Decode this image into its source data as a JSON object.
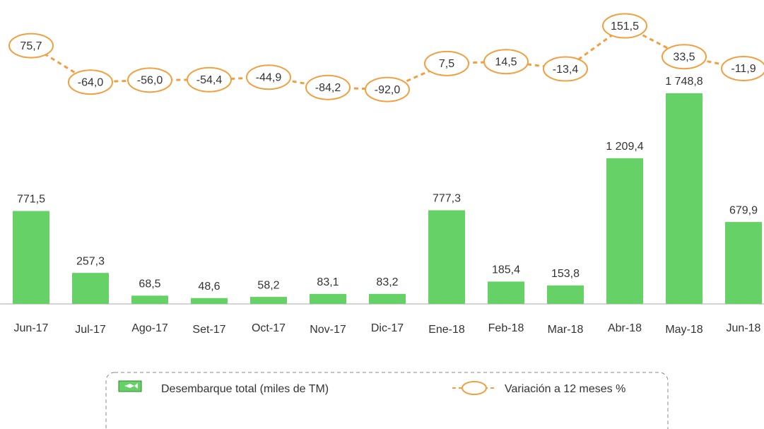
{
  "chart_data": {
    "type": "bar",
    "categories": [
      "Jun-17",
      "Jul-17",
      "Ago-17",
      "Set-17",
      "Oct-17",
      "Nov-17",
      "Dic-17",
      "Ene-18",
      "Feb-18",
      "Mar-18",
      "Abr-18",
      "May-18",
      "Jun-18"
    ],
    "series": [
      {
        "name": "Desembarque total (miles de TM)",
        "color": "#66d166",
        "values": [
          771.5,
          257.3,
          68.5,
          48.6,
          58.2,
          83.1,
          83.2,
          777.3,
          185.4,
          153.8,
          1209.4,
          1748.8,
          679.9
        ],
        "value_labels": [
          "771,5",
          "257,3",
          "68,5",
          "48,6",
          "58,2",
          "83,1",
          "83,2",
          "777,3",
          "185,4",
          "153,8",
          "1 209,4",
          "1 748,8",
          "679,9"
        ]
      },
      {
        "name": "Variación a 12 meses %",
        "color": "#f0a040",
        "axis": "y2",
        "values": [
          75.7,
          -64.0,
          -56.0,
          -54.4,
          -44.9,
          -84.2,
          -92.0,
          7.5,
          14.5,
          -13.4,
          151.5,
          33.5,
          -11.9
        ],
        "value_labels": [
          "75,7",
          "-64,0",
          "-56,0",
          "-54,4",
          "-44,9",
          "-84,2",
          "-92,0",
          "7,5",
          "14,5",
          "-13,4",
          "151,5",
          "33,5",
          "-11,9"
        ]
      }
    ],
    "ylim": [
      0,
      2200
    ],
    "y2lim": [
      -120,
      180
    ]
  }
}
